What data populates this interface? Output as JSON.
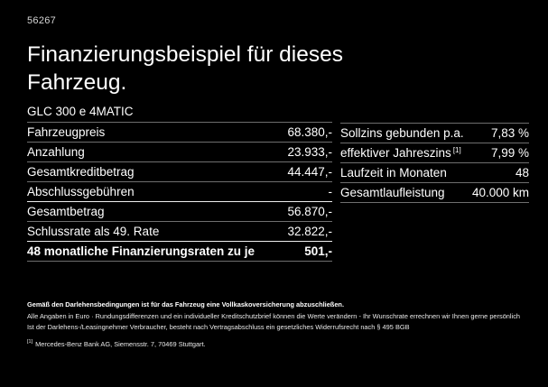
{
  "page": {
    "id_number": "56267",
    "title": "Finanzierungsbeispiel für dieses Fahrzeug."
  },
  "colors": {
    "background": "#000000",
    "text": "#ffffff",
    "divider": "#6e6e6e",
    "divider_strong": "#ededed"
  },
  "finance_table": {
    "header": "GLC 300 e 4MATIC",
    "rows": [
      {
        "label": "Fahrzeugpreis",
        "value": "68.380,-"
      },
      {
        "label": "Anzahlung",
        "value": "23.933,-"
      },
      {
        "label": "Gesamtkreditbetrag",
        "value": "44.447,-"
      },
      {
        "label": "Abschlussgebühren",
        "value": "-"
      },
      {
        "label": "Gesamtbetrag",
        "value": "56.870,-"
      },
      {
        "label": "Schlussrate als 49. Rate",
        "value": "32.822,-"
      },
      {
        "label": "48 monatliche Finanzierungsraten zu je",
        "value": "501,-"
      }
    ]
  },
  "conditions_table": {
    "rows": [
      {
        "label": "Sollzins gebunden p.a.",
        "sup": "",
        "value": "7,83 %"
      },
      {
        "label": "effektiver Jahreszins",
        "sup": "[1]",
        "value": "7,99 %"
      },
      {
        "label": "Laufzeit in Monaten",
        "sup": "",
        "value": "48"
      },
      {
        "label": "Gesamtlaufleistung",
        "sup": "",
        "value": "40.000 km"
      }
    ]
  },
  "footnotes": {
    "insurance": "Gemäß den Darlehensbedingungen ist für das Fahrzeug eine Vollkaskoversicherung abzuschließen.",
    "disclaimer": "Alle Angaben in Euro · Rundungsdifferenzen und ein individueller Kreditschutzbrief können die Werte verändern - Ihr Wunschrate errechnen wir Ihnen gerne persönlich",
    "withdrawal": "Ist der Darlehens-/Leasingnehmer Verbraucher, besteht nach Vertragsabschluss ein gesetzliches Widerrufsrecht nach § 495 BGB",
    "bank_ref_sup": "[1]",
    "bank_ref": "Mercedes-Benz Bank AG, Siemensstr. 7, 70469 Stuttgart."
  }
}
